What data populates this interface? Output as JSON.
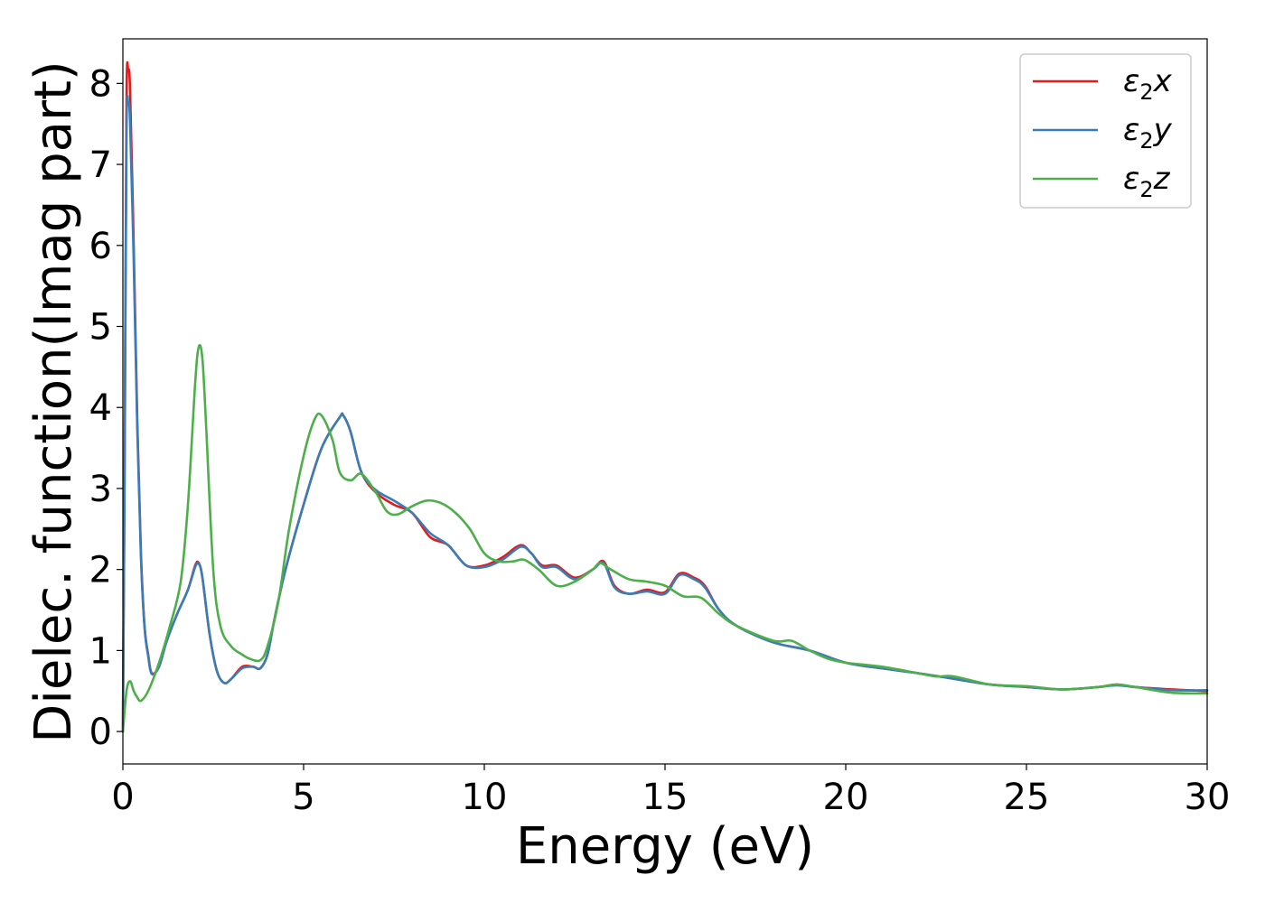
{
  "chart_data": {
    "type": "line",
    "xlabel": "Energy (eV)",
    "ylabel": "Dielec. function(Imag part)",
    "xlim": [
      0,
      30
    ],
    "ylim": [
      -0.4,
      8.55
    ],
    "xticks": [
      0,
      5,
      10,
      15,
      20,
      25,
      30
    ],
    "yticks": [
      0,
      1,
      2,
      3,
      4,
      5,
      6,
      7,
      8
    ],
    "legend_position": "top-right",
    "grid": false,
    "series": [
      {
        "name": "ε2x",
        "legend_base": "ε",
        "legend_sub": "2",
        "legend_var": "x",
        "color": "#e41a1c",
        "x": [
          0,
          0.05,
          0.1,
          0.15,
          0.2,
          0.3,
          0.4,
          0.5,
          0.6,
          0.7,
          0.8,
          1.0,
          1.2,
          1.5,
          1.8,
          2.0,
          2.1,
          2.2,
          2.4,
          2.6,
          2.8,
          3.0,
          3.3,
          3.6,
          3.8,
          4.0,
          4.2,
          4.5,
          5.0,
          5.5,
          6.0,
          6.1,
          6.3,
          6.6,
          7.0,
          7.5,
          8.0,
          8.5,
          9.0,
          9.5,
          10.0,
          10.5,
          11.0,
          11.3,
          11.6,
          12.0,
          12.5,
          13.0,
          13.3,
          13.6,
          14.0,
          14.5,
          15.0,
          15.4,
          15.8,
          16.1,
          16.5,
          17.0,
          18.0,
          19.0,
          20.0,
          21.0,
          22.0,
          23.0,
          24.0,
          25.0,
          26.0,
          27.0,
          27.5,
          28.0,
          29.0,
          30.0
        ],
        "y": [
          0.0,
          3.5,
          7.8,
          8.15,
          7.9,
          6.0,
          3.8,
          2.2,
          1.3,
          0.95,
          0.72,
          0.8,
          1.1,
          1.45,
          1.75,
          2.05,
          2.08,
          1.9,
          1.2,
          0.75,
          0.6,
          0.65,
          0.8,
          0.8,
          0.78,
          0.95,
          1.4,
          2.0,
          2.8,
          3.5,
          3.88,
          3.9,
          3.7,
          3.2,
          2.95,
          2.8,
          2.7,
          2.4,
          2.3,
          2.05,
          2.05,
          2.15,
          2.3,
          2.2,
          2.05,
          2.05,
          1.9,
          2.0,
          2.1,
          1.8,
          1.7,
          1.75,
          1.72,
          1.95,
          1.9,
          1.8,
          1.5,
          1.3,
          1.1,
          1.0,
          0.85,
          0.78,
          0.72,
          0.65,
          0.58,
          0.55,
          0.52,
          0.55,
          0.58,
          0.55,
          0.52,
          0.5
        ]
      },
      {
        "name": "ε2y",
        "legend_base": "ε",
        "legend_sub": "2",
        "legend_var": "y",
        "color": "#377eb8",
        "x": [
          0,
          0.05,
          0.1,
          0.15,
          0.2,
          0.3,
          0.4,
          0.5,
          0.6,
          0.7,
          0.8,
          1.0,
          1.2,
          1.5,
          1.8,
          2.0,
          2.1,
          2.2,
          2.4,
          2.6,
          2.8,
          3.0,
          3.3,
          3.6,
          3.8,
          4.0,
          4.2,
          4.5,
          5.0,
          5.5,
          6.0,
          6.1,
          6.3,
          6.6,
          7.0,
          7.5,
          8.0,
          8.5,
          9.0,
          9.5,
          10.0,
          10.5,
          11.0,
          11.3,
          11.6,
          12.0,
          12.5,
          13.0,
          13.3,
          13.6,
          14.0,
          14.5,
          15.0,
          15.4,
          15.8,
          16.1,
          16.5,
          17.0,
          18.0,
          19.0,
          20.0,
          21.0,
          22.0,
          23.0,
          24.0,
          25.0,
          26.0,
          27.0,
          27.5,
          28.0,
          29.0,
          30.0
        ],
        "y": [
          0.0,
          3.3,
          7.4,
          7.75,
          7.5,
          5.8,
          3.7,
          2.15,
          1.28,
          0.93,
          0.71,
          0.8,
          1.1,
          1.45,
          1.75,
          2.03,
          2.07,
          1.9,
          1.2,
          0.75,
          0.6,
          0.65,
          0.78,
          0.8,
          0.78,
          0.95,
          1.4,
          2.0,
          2.8,
          3.5,
          3.88,
          3.9,
          3.7,
          3.2,
          2.98,
          2.85,
          2.7,
          2.45,
          2.3,
          2.05,
          2.03,
          2.12,
          2.28,
          2.2,
          2.03,
          2.03,
          1.88,
          2.0,
          2.08,
          1.78,
          1.7,
          1.73,
          1.7,
          1.93,
          1.88,
          1.78,
          1.5,
          1.3,
          1.1,
          1.0,
          0.85,
          0.78,
          0.72,
          0.65,
          0.58,
          0.55,
          0.52,
          0.55,
          0.57,
          0.55,
          0.51,
          0.51
        ]
      },
      {
        "name": "ε2z",
        "legend_base": "ε",
        "legend_sub": "2",
        "legend_var": "z",
        "color": "#4daf4a",
        "x": [
          0,
          0.1,
          0.2,
          0.3,
          0.4,
          0.5,
          0.7,
          1.0,
          1.3,
          1.6,
          1.8,
          2.0,
          2.1,
          2.2,
          2.3,
          2.5,
          2.7,
          3.0,
          3.3,
          3.5,
          3.8,
          4.0,
          4.3,
          4.6,
          5.0,
          5.3,
          5.5,
          5.8,
          6.0,
          6.3,
          6.6,
          7.0,
          7.3,
          7.6,
          8.0,
          8.4,
          8.8,
          9.2,
          9.6,
          10.0,
          10.4,
          10.8,
          11.1,
          11.5,
          12.0,
          12.5,
          13.0,
          13.2,
          13.5,
          14.0,
          14.5,
          15.0,
          15.5,
          16.0,
          16.5,
          17.0,
          18.0,
          18.5,
          19.0,
          19.5,
          20.0,
          21.0,
          22.0,
          22.5,
          23.0,
          24.0,
          25.0,
          26.0,
          27.0,
          27.5,
          28.0,
          29.0,
          30.0
        ],
        "y": [
          0.0,
          0.5,
          0.62,
          0.5,
          0.42,
          0.38,
          0.5,
          0.85,
          1.3,
          1.85,
          2.8,
          4.3,
          4.75,
          4.6,
          3.8,
          2.0,
          1.3,
          1.05,
          0.95,
          0.9,
          0.88,
          1.05,
          1.6,
          2.5,
          3.4,
          3.85,
          3.9,
          3.6,
          3.2,
          3.1,
          3.18,
          2.95,
          2.72,
          2.68,
          2.78,
          2.85,
          2.82,
          2.7,
          2.5,
          2.2,
          2.1,
          2.1,
          2.12,
          2.0,
          1.8,
          1.85,
          2.0,
          2.08,
          2.0,
          1.88,
          1.85,
          1.8,
          1.67,
          1.65,
          1.45,
          1.3,
          1.12,
          1.12,
          1.0,
          0.9,
          0.85,
          0.8,
          0.72,
          0.68,
          0.68,
          0.58,
          0.56,
          0.52,
          0.55,
          0.58,
          0.55,
          0.48,
          0.47
        ]
      }
    ]
  }
}
